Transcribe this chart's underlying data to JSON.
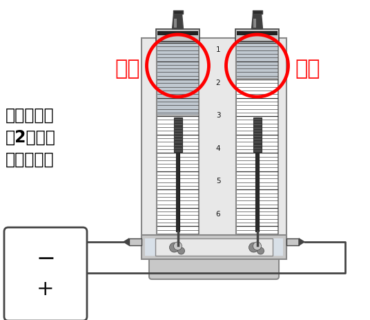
{
  "bg_color": "#ffffff",
  "label_hydrogen": "水素",
  "label_oxygen": "酸素",
  "annotation_line1": "水素は酸素",
  "annotation_line2": "の2倍の量",
  "annotation_line3": "が発生する",
  "scale_numbers": [
    "1",
    "2",
    "3",
    "4",
    "5",
    "6"
  ],
  "minus_label": "−",
  "plus_label": "+",
  "circle_color": "#ff0000",
  "label_color": "#ff1111",
  "text_color": "#000000",
  "gray_light": "#e8e8e8",
  "gray_mid": "#c8c8c8",
  "gray_dark": "#888888",
  "gray_darker": "#444444",
  "tube_white": "#f5f5f5",
  "gas_gray": "#c0c8d0",
  "water_fill": "#d8e0e8"
}
